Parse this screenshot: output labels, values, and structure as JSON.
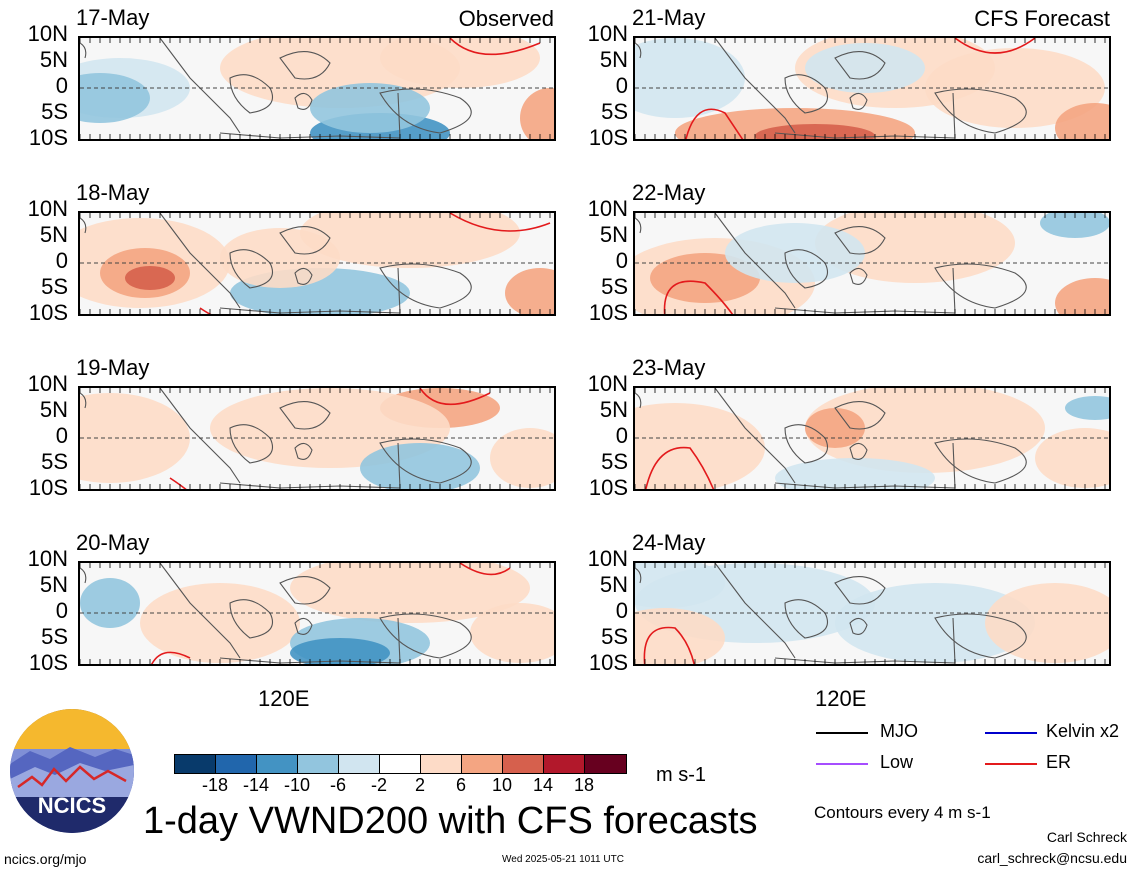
{
  "panels": [
    {
      "date": "17-May",
      "tag": "Observed"
    },
    {
      "date": "18-May",
      "tag": ""
    },
    {
      "date": "19-May",
      "tag": ""
    },
    {
      "date": "20-May",
      "tag": ""
    },
    {
      "date": "21-May",
      "tag": "CFS Forecast"
    },
    {
      "date": "22-May",
      "tag": ""
    },
    {
      "date": "23-May",
      "tag": ""
    },
    {
      "date": "24-May",
      "tag": ""
    }
  ],
  "lat_labels": [
    "10N",
    "5N",
    "0",
    "5S",
    "10S"
  ],
  "lon_label": "120E",
  "colorbar": {
    "colors": [
      "#083a6b",
      "#2166ac",
      "#4393c3",
      "#92c5de",
      "#d1e5f0",
      "#ffffff",
      "#fddbc7",
      "#f4a582",
      "#d6604d",
      "#b2182b",
      "#67001f"
    ],
    "labels": [
      "-18",
      "-14",
      "-10",
      "-6",
      "-2",
      "2",
      "6",
      "10",
      "14",
      "18"
    ],
    "units": "m s-1"
  },
  "legend": {
    "items": [
      {
        "label": "MJO",
        "color": "#000000"
      },
      {
        "label": "Kelvin x2",
        "color": "#0000cc"
      },
      {
        "label": "Low",
        "color": "#a64dff"
      },
      {
        "label": "ER",
        "color": "#e31a1c"
      }
    ],
    "contours_note": "Contours every 4 m s-1"
  },
  "title": "1-day VWND200 with CFS forecasts",
  "footer": {
    "url": "ncics.org/mjo",
    "timestamp": "Wed 2025-05-21 1011 UTC",
    "author": "Carl Schreck",
    "email": "carl_schreck@ncsu.edu"
  },
  "logo": {
    "text": "NCICS"
  }
}
